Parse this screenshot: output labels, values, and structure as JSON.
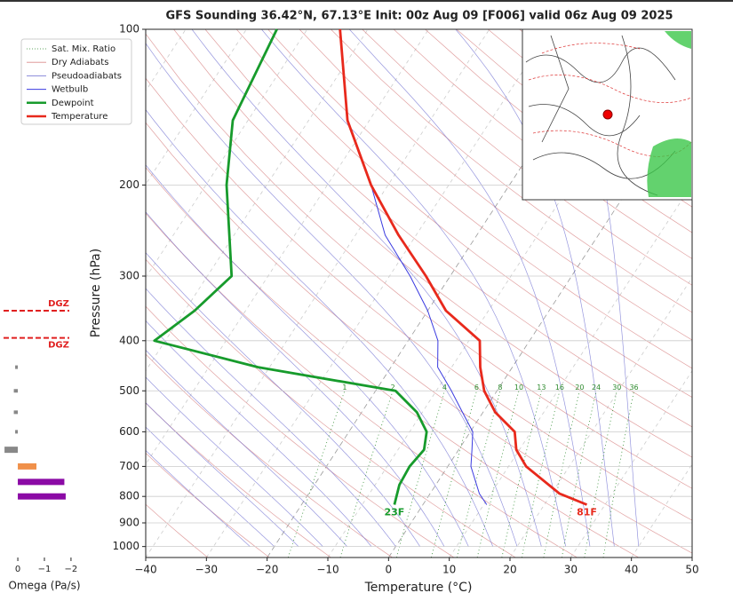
{
  "chart_data": [
    {
      "type": "skewt",
      "title": "GFS Sounding 36.42°N, 67.13°E Init: 00z Aug 09 [F006] valid 06z Aug 09 2025",
      "xlabel": "Temperature (°C)",
      "ylabel": "Pressure (hPa)",
      "xlim": [
        -40,
        50
      ],
      "xticks": [
        {
          "value": -40,
          "label": "−40"
        },
        {
          "value": -30,
          "label": "−30"
        },
        {
          "value": -20,
          "label": "−20"
        },
        {
          "value": -10,
          "label": "−10"
        },
        0,
        10,
        20,
        30,
        40,
        50
      ],
      "ylim": [
        1050,
        100
      ],
      "log_y": true,
      "yticks": [
        100,
        200,
        300,
        400,
        500,
        600,
        700,
        800,
        900,
        1000
      ],
      "grid": true,
      "background_lines": [
        {
          "name": "Sat. Mix. Ratio",
          "color": "#2e8b2e"
        },
        {
          "name": "Dry Adiabats",
          "color": "#d98a8a"
        },
        {
          "name": "Pseudoadiabats",
          "color": "#6a6ad0"
        }
      ],
      "mixing_ratio_labels": [
        1,
        2,
        4,
        6,
        8,
        10,
        13,
        16,
        20,
        24,
        30,
        36
      ],
      "series": [
        {
          "name": "Wetbulb",
          "color": "#3a3ae0",
          "pressure": [
            150,
            200,
            250,
            300,
            350,
            400,
            450,
            500,
            550,
            600,
            650,
            700,
            790,
            830
          ],
          "values": [
            -53.6,
            -42.8,
            -35.1,
            -26.6,
            -20,
            -15.1,
            -12.3,
            -7.5,
            -3.4,
            0.4,
            2.2,
            3.8,
            8.1,
            10.5
          ]
        },
        {
          "name": "Dewpoint",
          "color": "#179b2c",
          "pressure": [
            100,
            150,
            200,
            300,
            350,
            400,
            450,
            500,
            550,
            600,
            650,
            700,
            760,
            830
          ],
          "values": [
            -75,
            -72.5,
            -66.6,
            -56,
            -58.4,
            -61.8,
            -41.9,
            -16.7,
            -10.9,
            -7.2,
            -5.7,
            -6.3,
            -6,
            -4.7
          ]
        },
        {
          "name": "Temperature",
          "color": "#e8291c",
          "pressure": [
            100,
            150,
            200,
            250,
            300,
            350,
            400,
            450,
            500,
            550,
            600,
            650,
            700,
            790,
            830
          ],
          "values": [
            -64.6,
            -53.6,
            -42.8,
            -32.9,
            -24,
            -17,
            -8.2,
            -5.3,
            -2.1,
            2,
            7.3,
            9.5,
            12.9,
            21.3,
            27
          ]
        }
      ],
      "surface_labels": {
        "temperature": "81F",
        "dewpoint": "23F"
      }
    },
    {
      "type": "omega",
      "xlabel": "Omega (Pa/s)",
      "xlim": [
        0.67,
        -2.17
      ],
      "xticks": [
        0,
        {
          "value": -1,
          "label": "−1"
        },
        {
          "value": -2,
          "label": "−2"
        }
      ],
      "pressure": [
        450,
        500,
        550,
        600,
        650,
        700,
        750,
        800
      ],
      "values": [
        0.1,
        0.15,
        0.15,
        0.1,
        0.5,
        -0.7,
        -1.75,
        -1.8
      ],
      "colors": [
        "#888888",
        "#888888",
        "#888888",
        "#888888",
        "#888888",
        "#f0904a",
        "#8b0aa5",
        "#8b0aa5"
      ],
      "dgz": {
        "label": "DGZ",
        "pressures": [
          350,
          395
        ],
        "color": "#e02020"
      }
    }
  ]
}
